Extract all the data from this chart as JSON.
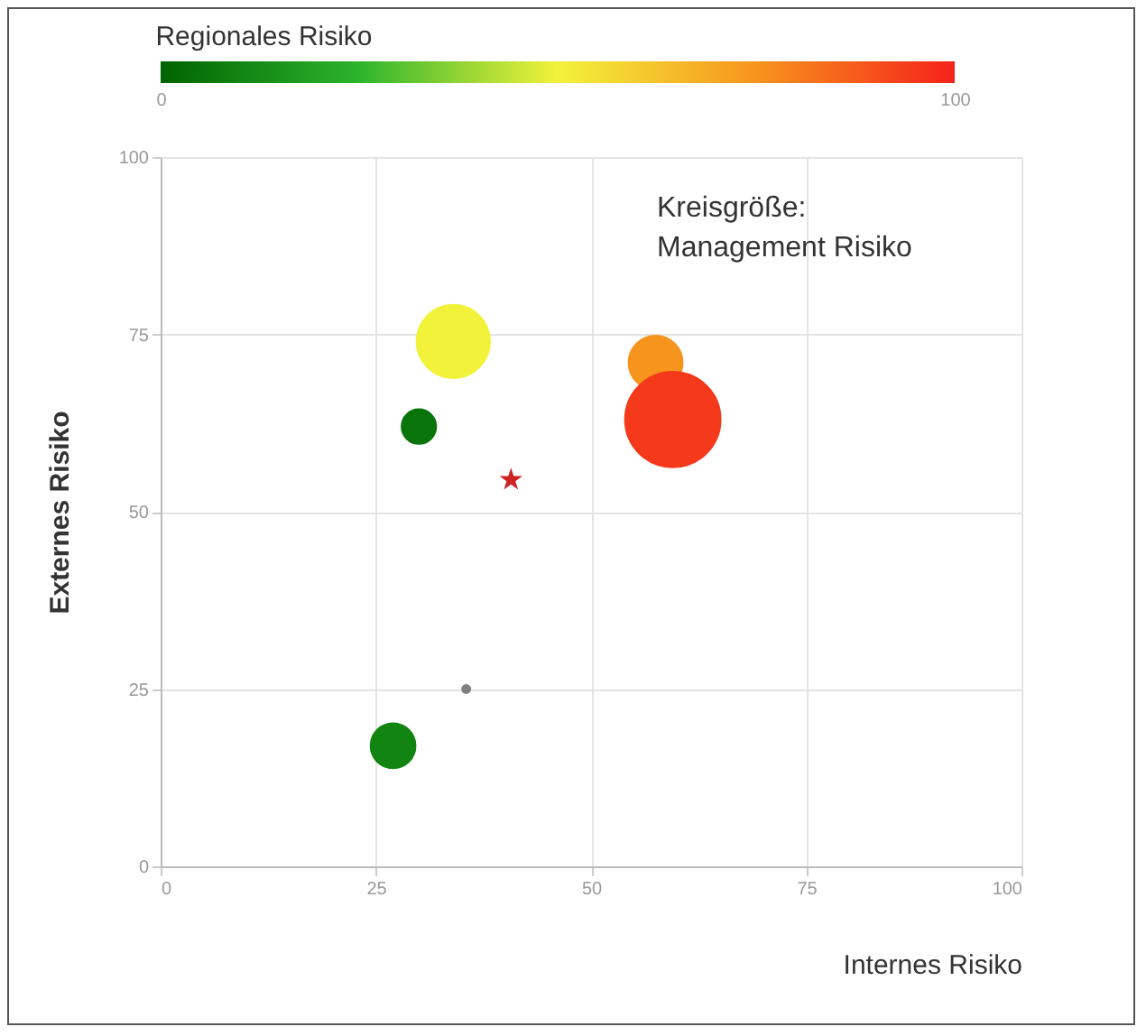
{
  "chart_data": {
    "type": "bubble",
    "xlabel": "Internes Risiko",
    "ylabel": "Externes Risiko",
    "clabel": "Regionales Risiko",
    "clim": [
      0,
      100
    ],
    "cticks": [
      0,
      100
    ],
    "xlim": [
      0,
      100
    ],
    "ylim": [
      0,
      100
    ],
    "xticks": [
      0,
      25,
      50,
      75,
      100
    ],
    "yticks": [
      0,
      25,
      50,
      75,
      100
    ],
    "grid": true,
    "annotations": [
      "Kreisgröße:\nManagement Risiko"
    ],
    "series": [
      {
        "x": [
          34,
          30,
          57.5,
          59.5,
          27
        ],
        "values": [
          74,
          62,
          71,
          63,
          17
        ],
        "sizes": [
          0.59,
          0.13,
          0.32,
          1,
          0.22
        ],
        "cvalues": [
          50,
          5,
          75,
          95,
          10
        ],
        "colors": [
          "#f2f23a",
          "#097409",
          "#f7941d",
          "#f5391b",
          "#128412"
        ]
      },
      {
        "type": "scatter",
        "color": "#808080",
        "marker": "circle",
        "x": [
          35.5
        ],
        "values": [
          25
        ]
      },
      {
        "type": "scatter",
        "color": "#cc2222",
        "marker": "star",
        "x": [
          40.7
        ],
        "values": [
          54.5
        ]
      }
    ]
  }
}
